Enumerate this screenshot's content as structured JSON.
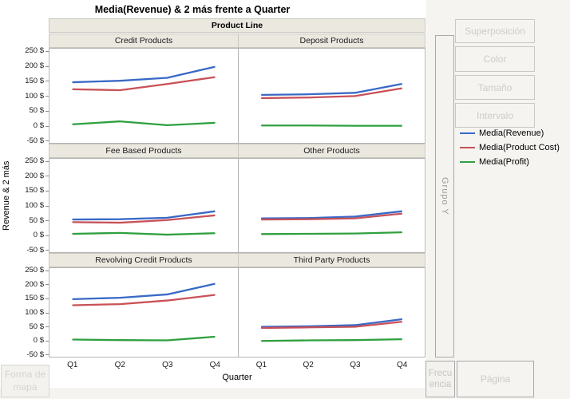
{
  "title": "Media(Revenue) & 2 más frente a Quarter",
  "drop_zones": {
    "overlay": "Superposición",
    "color": "Color",
    "size": "Tamaño",
    "interval": "Intervalo",
    "group_y": "Grupo Y",
    "map_shape": "Forma de mapa",
    "frequency": "Frecuencia",
    "page": "Página"
  },
  "legend": [
    {
      "label": "Media(Revenue)",
      "color": "#3969C6"
    },
    {
      "label": "Media(Product Cost)",
      "color": "#C85158"
    },
    {
      "label": "Media(Profit)",
      "color": "#2FA03F"
    }
  ],
  "chart_data": {
    "type": "line",
    "facet_header": "Product Line",
    "categories": [
      "Q1",
      "Q2",
      "Q3",
      "Q4"
    ],
    "xlabel": "Quarter",
    "ylabel": "Revenue & 2 más",
    "y_ticks": [
      "250 $",
      "200 $",
      "150 $",
      "100 $",
      "50 $",
      "0 $",
      "-50 $"
    ],
    "y_tick_values": [
      250,
      200,
      150,
      100,
      50,
      0,
      -50
    ],
    "ylim": [
      -60,
      260
    ],
    "grid": false,
    "legend_position": "right",
    "panels": [
      {
        "title": "Credit Products",
        "series": [
          {
            "name": "Media(Revenue)",
            "values": [
              146,
              151,
              161,
              198
            ]
          },
          {
            "name": "Media(Product Cost)",
            "values": [
              122,
              119,
              140,
              163
            ]
          },
          {
            "name": "Media(Profit)",
            "values": [
              3,
              13,
              0,
              8
            ]
          }
        ]
      },
      {
        "title": "Deposit Products",
        "series": [
          {
            "name": "Media(Revenue)",
            "values": [
              103,
              105,
              110,
              140
            ]
          },
          {
            "name": "Media(Product Cost)",
            "values": [
              92,
              94,
              99,
              125
            ]
          },
          {
            "name": "Media(Profit)",
            "values": [
              -1,
              -1,
              -2,
              -2
            ]
          }
        ]
      },
      {
        "title": "Fee Based Products",
        "series": [
          {
            "name": "Media(Revenue)",
            "values": [
              52,
              53,
              58,
              80
            ]
          },
          {
            "name": "Media(Product Cost)",
            "values": [
              43,
              41,
              50,
              66
            ]
          },
          {
            "name": "Media(Profit)",
            "values": [
              3,
              6,
              0,
              5
            ]
          }
        ]
      },
      {
        "title": "Other Products",
        "series": [
          {
            "name": "Media(Revenue)",
            "values": [
              56,
              57,
              62,
              80
            ]
          },
          {
            "name": "Media(Product Cost)",
            "values": [
              52,
              53,
              56,
              72
            ]
          },
          {
            "name": "Media(Profit)",
            "values": [
              2,
              3,
              4,
              8
            ]
          }
        ]
      },
      {
        "title": "Revolving Credit Products",
        "series": [
          {
            "name": "Media(Revenue)",
            "values": [
              148,
              153,
              165,
              203
            ]
          },
          {
            "name": "Media(Product Cost)",
            "values": [
              126,
              130,
              143,
              163
            ]
          },
          {
            "name": "Media(Profit)",
            "values": [
              2,
              0,
              -1,
              12
            ]
          }
        ]
      },
      {
        "title": "Third Party Products",
        "series": [
          {
            "name": "Media(Revenue)",
            "values": [
              48,
              50,
              54,
              75
            ]
          },
          {
            "name": "Media(Product Cost)",
            "values": [
              44,
              46,
              48,
              66
            ]
          },
          {
            "name": "Media(Profit)",
            "values": [
              -3,
              -1,
              0,
              3
            ]
          }
        ]
      }
    ]
  }
}
